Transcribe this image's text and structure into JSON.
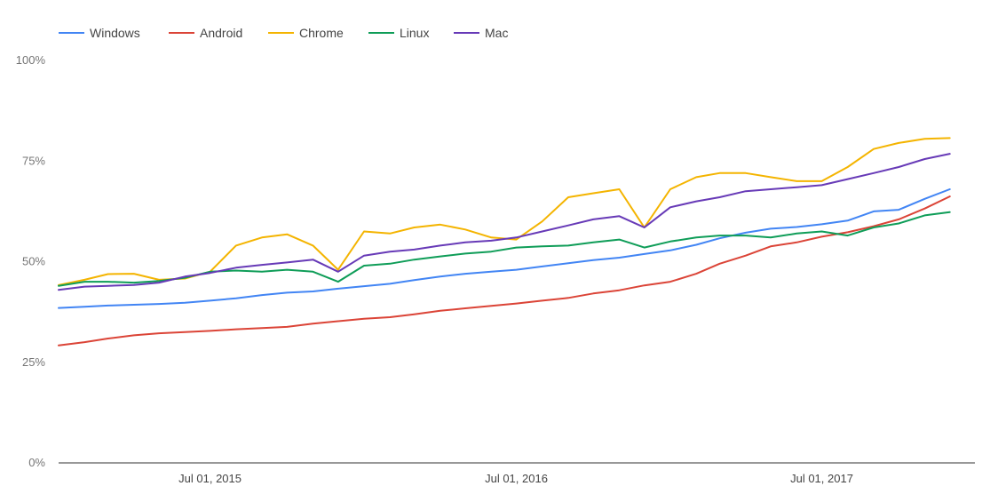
{
  "chart_data": {
    "type": "line",
    "title": "",
    "xlabel": "",
    "ylabel": "",
    "ylim": [
      0,
      100
    ],
    "y_ticks": [
      {
        "value": 0,
        "label": "0%"
      },
      {
        "value": 25,
        "label": "25%"
      },
      {
        "value": 50,
        "label": "50%"
      },
      {
        "value": 75,
        "label": "75%"
      },
      {
        "value": 100,
        "label": "100%"
      }
    ],
    "x_range": [
      "2015-01-01",
      "2017-12-31"
    ],
    "x_ticks": [
      {
        "value": "2015-07-01",
        "label": "Jul 01, 2015"
      },
      {
        "value": "2016-07-01",
        "label": "Jul 01, 2016"
      },
      {
        "value": "2017-07-01",
        "label": "Jul 01, 2017"
      }
    ],
    "grid": "baseline only",
    "legend_position": "top-left",
    "x": [
      "2015-01-01",
      "2015-02-01",
      "2015-03-01",
      "2015-04-01",
      "2015-05-01",
      "2015-06-01",
      "2015-07-01",
      "2015-08-01",
      "2015-09-01",
      "2015-10-01",
      "2015-11-01",
      "2015-12-01",
      "2016-01-01",
      "2016-02-01",
      "2016-03-01",
      "2016-04-01",
      "2016-05-01",
      "2016-06-01",
      "2016-07-01",
      "2016-08-01",
      "2016-09-01",
      "2016-10-01",
      "2016-11-01",
      "2016-12-01",
      "2017-01-01",
      "2017-02-01",
      "2017-03-01",
      "2017-04-01",
      "2017-05-01",
      "2017-06-01",
      "2017-07-01",
      "2017-08-01",
      "2017-09-01",
      "2017-10-01",
      "2017-11-01",
      "2017-12-01"
    ],
    "series": [
      {
        "name": "Windows",
        "color": "#4285f4",
        "values": [
          38.5,
          38.8,
          39.1,
          39.3,
          39.5,
          39.8,
          40.3,
          40.9,
          41.7,
          42.3,
          42.6,
          43.3,
          43.9,
          44.5,
          45.4,
          46.3,
          47.0,
          47.5,
          48.0,
          48.8,
          49.6,
          50.4,
          51.0,
          51.9,
          52.8,
          54.2,
          55.8,
          57.2,
          58.2,
          58.6,
          59.3,
          60.2,
          62.5,
          62.9,
          65.6,
          68.0
        ]
      },
      {
        "name": "Android",
        "color": "#db4437",
        "values": [
          29.2,
          30.0,
          30.9,
          31.7,
          32.2,
          32.5,
          32.8,
          33.2,
          33.5,
          33.8,
          34.6,
          35.2,
          35.8,
          36.2,
          36.9,
          37.8,
          38.4,
          39.0,
          39.6,
          40.3,
          41.0,
          42.1,
          42.9,
          44.1,
          45.0,
          47.0,
          49.5,
          51.5,
          53.8,
          54.8,
          56.2,
          57.3,
          58.8,
          60.5,
          63.2,
          66.2
        ]
      },
      {
        "name": "Chrome",
        "color": "#f4b400",
        "values": [
          44.2,
          45.5,
          46.9,
          47.0,
          45.5,
          45.8,
          47.5,
          54.0,
          56.0,
          56.8,
          54.0,
          48.0,
          57.5,
          57.0,
          58.5,
          59.2,
          58.0,
          56.0,
          55.5,
          60.0,
          66.0,
          67.0,
          68.0,
          58.5,
          68.0,
          71.0,
          72.0,
          72.0,
          71.0,
          70.0,
          70.0,
          73.5,
          78.0,
          79.5,
          80.5,
          80.7
        ]
      },
      {
        "name": "Linux",
        "color": "#0f9d58",
        "values": [
          44.0,
          45.0,
          45.0,
          44.8,
          45.2,
          46.0,
          47.5,
          47.8,
          47.5,
          48.0,
          47.5,
          45.0,
          49.0,
          49.5,
          50.5,
          51.3,
          52.0,
          52.5,
          53.5,
          53.8,
          54.0,
          54.8,
          55.5,
          53.5,
          55.0,
          56.0,
          56.5,
          56.5,
          56.0,
          57.0,
          57.5,
          56.5,
          58.5,
          59.5,
          61.5,
          62.3
        ]
      },
      {
        "name": "Mac",
        "color": "#673ab7",
        "values": [
          43.0,
          43.8,
          44.0,
          44.2,
          44.8,
          46.3,
          47.2,
          48.5,
          49.2,
          49.8,
          50.5,
          47.5,
          51.5,
          52.5,
          53.0,
          54.0,
          54.8,
          55.2,
          56.0,
          57.5,
          59.0,
          60.5,
          61.3,
          58.5,
          63.5,
          65.0,
          66.0,
          67.5,
          68.0,
          68.5,
          69.0,
          70.5,
          72.0,
          73.5,
          75.5,
          76.8
        ]
      }
    ]
  }
}
